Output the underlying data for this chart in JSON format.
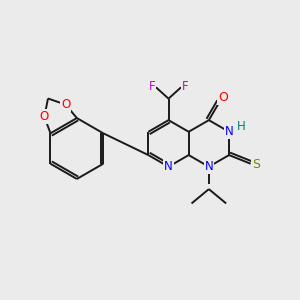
{
  "bg_color": "#ebebeb",
  "bond_color": "#1a1a1a",
  "lw": 1.4,
  "atom_colors": {
    "F": "#cc00cc",
    "O": "#ff0000",
    "N": "#0000ff",
    "S": "#808000",
    "H": "#008080"
  },
  "figsize": [
    3.0,
    3.0
  ],
  "dpi": 100
}
